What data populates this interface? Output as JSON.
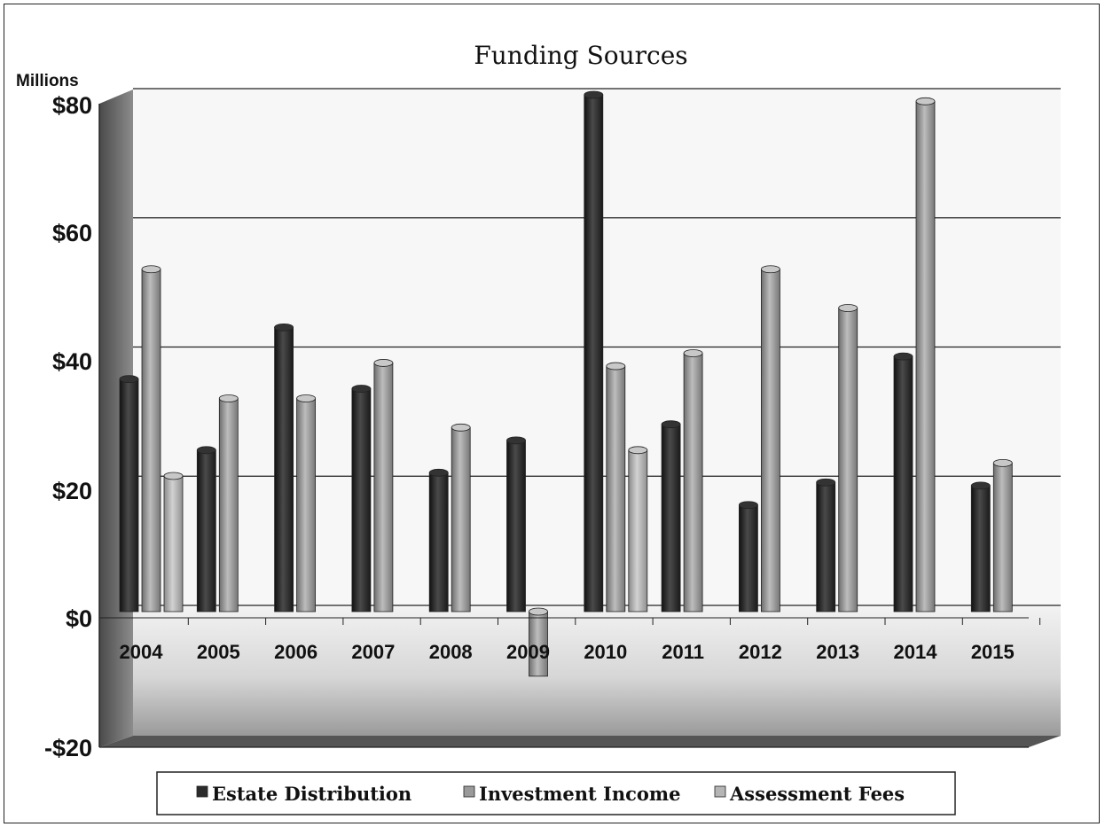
{
  "chart_data": {
    "type": "bar",
    "title": "Funding Sources",
    "ylabel": "Millions",
    "xlabel": "",
    "ylim": [
      -20,
      80
    ],
    "yticks": [
      80,
      60,
      40,
      20,
      0,
      -20
    ],
    "ytick_labels": [
      "$80",
      "$60",
      "$40",
      "$20",
      "$0",
      "-$20"
    ],
    "grid": true,
    "legend_position": "bottom",
    "categories": [
      "2004",
      "2005",
      "2006",
      "2007",
      "2008",
      "2009",
      "2010",
      "2011",
      "2012",
      "2013",
      "2014",
      "2015"
    ],
    "series": [
      {
        "name": "Estate Distribution",
        "color": "#2b2b2b",
        "values": [
          36,
          25,
          44,
          34.5,
          21.5,
          26.5,
          80,
          29,
          16.5,
          20,
          39.5,
          19.5
        ]
      },
      {
        "name": "Investment Income",
        "color": "#9a9a9a",
        "values": [
          53,
          33,
          33,
          38.5,
          28.5,
          -10,
          38,
          40,
          53,
          47,
          79,
          23
        ]
      },
      {
        "name": "Assessment Fees",
        "color": "#b5b5b5",
        "values": [
          21,
          null,
          null,
          null,
          null,
          null,
          25,
          null,
          null,
          null,
          null,
          null
        ]
      }
    ]
  }
}
